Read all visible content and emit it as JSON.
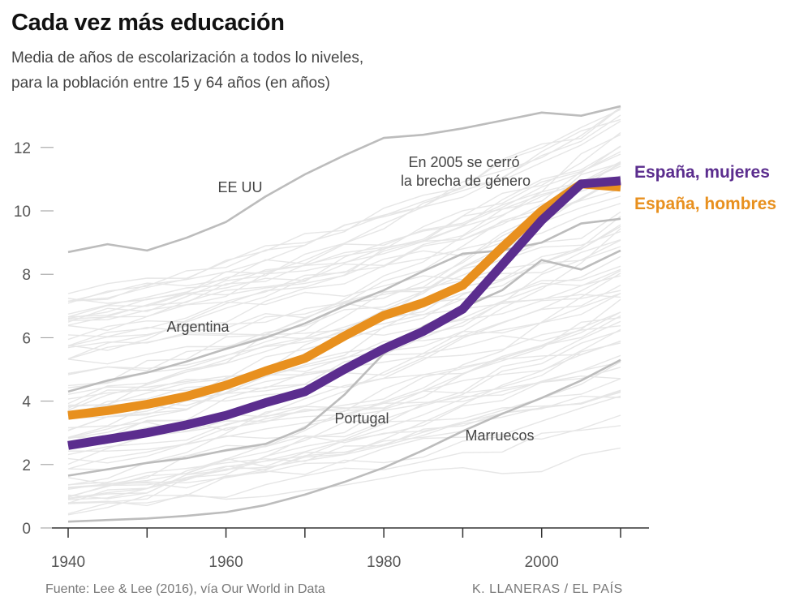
{
  "header": {
    "title": "Cada vez más educación",
    "subtitle_line1": "Media de años de escolarización a todos lo niveles,",
    "subtitle_line2": "para la población entre 15 y 64 años (en años)"
  },
  "footer": {
    "source": "Fuente: Lee & Lee (2016), vía Our World in Data",
    "credit": "K. LLANERAS  /  EL PAÍS"
  },
  "colors": {
    "spain_women": "#5b2d8e",
    "spain_men": "#e8901e",
    "highlight_gray": "#bcbcbc",
    "background_lines": "#e6e6e6"
  },
  "chart_data": {
    "type": "line",
    "title": "Cada vez más educación",
    "xlabel": "",
    "ylabel": "",
    "xlim": [
      1940,
      2010
    ],
    "ylim": [
      0,
      13.5
    ],
    "x_ticks": [
      1940,
      1950,
      1960,
      1970,
      1980,
      1990,
      2000,
      2010
    ],
    "x_tick_labels": [
      "1940",
      "1960",
      "1980",
      "2000"
    ],
    "y_ticks": [
      0,
      2,
      4,
      6,
      8,
      10,
      12
    ],
    "y_tick_labels": [
      "0",
      "2",
      "4",
      "6",
      "8",
      "10",
      "12"
    ],
    "x": [
      1940,
      1945,
      1950,
      1955,
      1960,
      1965,
      1970,
      1975,
      1980,
      1985,
      1990,
      1995,
      2000,
      2005,
      2010
    ],
    "highlight_series": [
      {
        "name": "España, mujeres",
        "values": [
          2.6,
          2.8,
          3.0,
          3.25,
          3.55,
          3.95,
          4.3,
          5.0,
          5.65,
          6.2,
          6.9,
          8.3,
          9.7,
          10.85,
          10.95
        ]
      },
      {
        "name": "España, hombres",
        "values": [
          3.55,
          3.7,
          3.9,
          4.15,
          4.5,
          4.95,
          5.35,
          6.05,
          6.7,
          7.1,
          7.65,
          8.85,
          10.0,
          10.85,
          10.75
        ]
      }
    ],
    "labeled_series": [
      {
        "name": "EE UU",
        "values": [
          8.7,
          8.95,
          8.75,
          9.15,
          9.65,
          10.45,
          11.15,
          11.75,
          12.3,
          12.4,
          12.6,
          12.85,
          13.1,
          13.0,
          13.3
        ]
      },
      {
        "name": "Argentina",
        "values": [
          4.3,
          4.65,
          4.9,
          5.25,
          5.65,
          6.0,
          6.45,
          7.0,
          7.5,
          8.1,
          8.65,
          8.75,
          9.0,
          9.6,
          9.75
        ]
      },
      {
        "name": "Portugal",
        "values": [
          1.65,
          1.85,
          2.05,
          2.2,
          2.45,
          2.65,
          3.15,
          4.2,
          5.5,
          6.35,
          6.95,
          7.5,
          8.45,
          8.15,
          8.75
        ]
      },
      {
        "name": "Marruecos",
        "values": [
          0.2,
          0.25,
          0.3,
          0.38,
          0.5,
          0.72,
          1.05,
          1.45,
          1.9,
          2.45,
          3.05,
          3.6,
          4.1,
          4.65,
          5.3
        ]
      }
    ],
    "annotations": [
      {
        "text_line1": "En 2005 se cerró",
        "text_line2": "la brecha de género"
      }
    ]
  }
}
